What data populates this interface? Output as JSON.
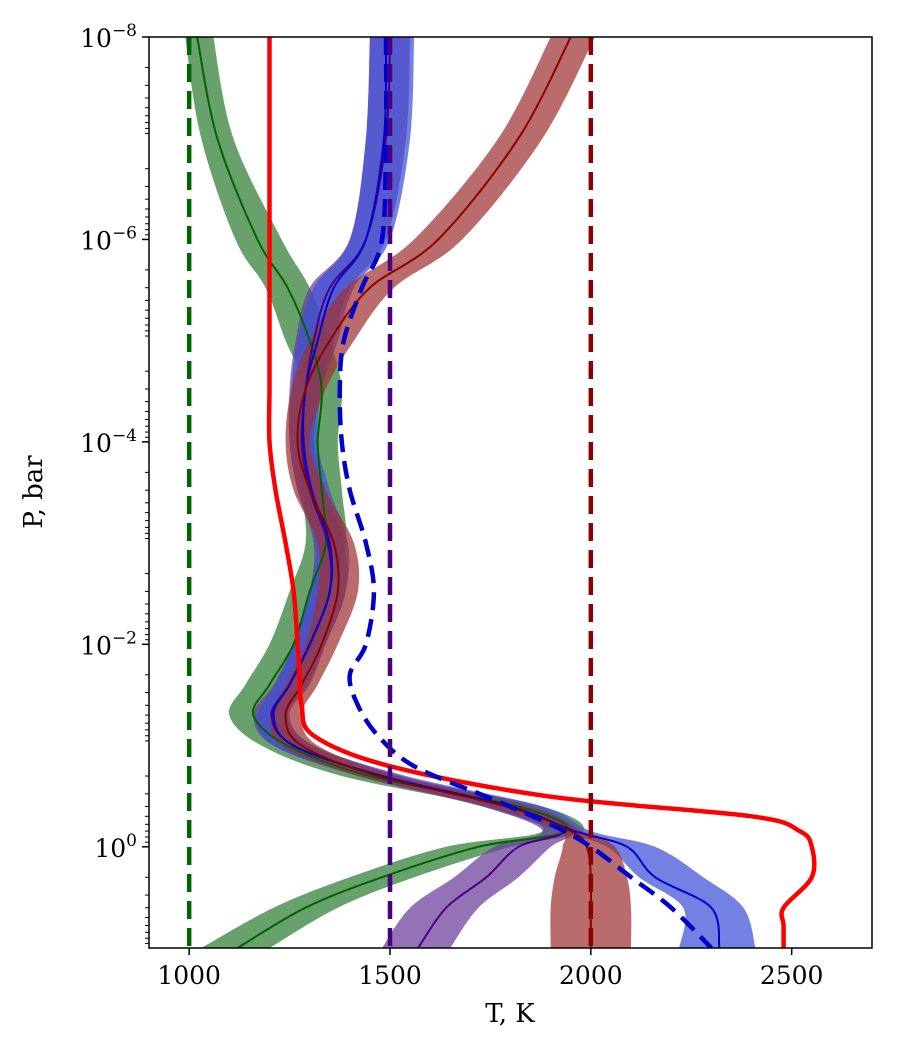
{
  "chart_data": {
    "type": "line",
    "xlabel": "T, K",
    "ylabel": "P, bar",
    "xlim": [
      900,
      2700
    ],
    "ylim": [
      10,
      1e-08
    ],
    "yscale": "log",
    "grid": false,
    "legend": "none",
    "x_ticks": [
      {
        "value": 1000,
        "label": "1000"
      },
      {
        "value": 1500,
        "label": "1500"
      },
      {
        "value": 2000,
        "label": "2000"
      },
      {
        "value": 2500,
        "label": "2500"
      }
    ],
    "y_ticks": [
      {
        "value": 1e-08,
        "base": "10",
        "exp": "−8"
      },
      {
        "value": 1e-06,
        "base": "10",
        "exp": "−6"
      },
      {
        "value": 0.0001,
        "base": "10",
        "exp": "−4"
      },
      {
        "value": 0.01,
        "base": "10",
        "exp": "−2"
      },
      {
        "value": 1,
        "base": "10",
        "exp": "0"
      }
    ],
    "pressure_levels": [
      1e-08,
      1e-07,
      1e-06,
      3e-06,
      1e-05,
      3e-05,
      0.0001,
      0.0003,
      0.001,
      0.003,
      0.01,
      0.025,
      0.05,
      0.1,
      0.2,
      0.4,
      0.7,
      1,
      2,
      4,
      10
    ],
    "series": [
      {
        "color": "#006400",
        "band_color": "#2e7d32",
        "median": [
          1020,
          1070,
          1170,
          1245,
          1300,
          1330,
          1320,
          1330,
          1340,
          1300,
          1260,
          1200,
          1160,
          1245,
          1450,
          1820,
          1940,
          1720,
          1480,
          1290,
          1120
        ],
        "lower": [
          990,
          1030,
          1115,
          1190,
          1240,
          1290,
          1270,
          1280,
          1290,
          1250,
          1200,
          1140,
          1100,
          1180,
          1380,
          1740,
          1880,
          1640,
          1400,
          1210,
          1030
        ],
        "upper": [
          1060,
          1110,
          1230,
          1300,
          1350,
          1380,
          1370,
          1380,
          1390,
          1350,
          1310,
          1250,
          1210,
          1300,
          1510,
          1880,
          1980,
          1800,
          1560,
          1370,
          1200
        ]
      },
      {
        "color": "#4b0082",
        "band_color": "#6a3d9a",
        "median": [
          1500,
          1490,
          1440,
          1350,
          1310,
          1290,
          1280,
          1300,
          1345,
          1350,
          1300,
          1250,
          1205,
          1260,
          1480,
          1800,
          1930,
          1820,
          1740,
          1640,
          1570
        ],
        "lower": [
          1450,
          1440,
          1400,
          1300,
          1265,
          1250,
          1250,
          1270,
          1310,
          1300,
          1260,
          1210,
          1160,
          1210,
          1420,
          1730,
          1880,
          1760,
          1660,
          1550,
          1480
        ],
        "upper": [
          1550,
          1540,
          1490,
          1400,
          1360,
          1330,
          1310,
          1340,
          1385,
          1390,
          1340,
          1295,
          1245,
          1310,
          1530,
          1860,
          1960,
          1900,
          1820,
          1720,
          1650
        ]
      },
      {
        "color": "#0000cd",
        "band_color": "#3f51d8",
        "median": [
          1490,
          1485,
          1440,
          1360,
          1320,
          1290,
          1285,
          1305,
          1350,
          1350,
          1300,
          1250,
          1210,
          1260,
          1480,
          1800,
          1960,
          2090,
          2160,
          2300,
          2320
        ],
        "lower": [
          1450,
          1440,
          1400,
          1310,
          1270,
          1255,
          1250,
          1270,
          1315,
          1300,
          1260,
          1215,
          1170,
          1210,
          1420,
          1730,
          1920,
          2040,
          2120,
          2230,
          2220
        ],
        "upper": [
          1560,
          1550,
          1500,
          1410,
          1370,
          1330,
          1320,
          1350,
          1395,
          1390,
          1340,
          1300,
          1250,
          1310,
          1540,
          1880,
          2000,
          2160,
          2280,
          2380,
          2410
        ]
      },
      {
        "color": "#8b0000",
        "band_color": "#a03232",
        "median": [
          1950,
          1820,
          1620,
          1450,
          1350,
          1290,
          1270,
          1300,
          1360,
          1370,
          1330,
          1280,
          1240,
          1280,
          1470,
          1790,
          1950,
          1990,
          2000,
          2000,
          2000
        ],
        "lower": [
          1900,
          1770,
          1560,
          1390,
          1300,
          1255,
          1240,
          1260,
          1320,
          1320,
          1290,
          1240,
          1205,
          1230,
          1420,
          1740,
          1920,
          1930,
          1910,
          1900,
          1900
        ],
        "upper": [
          2010,
          1880,
          1680,
          1510,
          1410,
          1340,
          1300,
          1340,
          1410,
          1420,
          1370,
          1320,
          1280,
          1320,
          1520,
          1850,
          1980,
          2060,
          2090,
          2100,
          2100
        ]
      }
    ],
    "reference_profiles": [
      {
        "color": "#ff0000",
        "style": "solid",
        "T": [
          1200,
          1200,
          1200,
          1200,
          1200,
          1200,
          1200,
          1215,
          1240,
          1260,
          1270,
          1275,
          1280,
          1310,
          1500,
          1900,
          2400,
          2520,
          2550,
          2550,
          2480,
          2480,
          2480
        ],
        "P": [
          1e-08,
          1e-07,
          1e-06,
          3e-06,
          1e-05,
          3e-05,
          0.0001,
          0.0003,
          0.001,
          0.003,
          0.01,
          0.02,
          0.04,
          0.08,
          0.16,
          0.32,
          0.5,
          0.7,
          1,
          2,
          4,
          6,
          10
        ]
      },
      {
        "color": "#0000cd",
        "style": "dashed",
        "T": [
          1490,
          1490,
          1480,
          1430,
          1385,
          1375,
          1380,
          1400,
          1440,
          1460,
          1440,
          1400,
          1420,
          1470,
          1560,
          1740,
          1900,
          2000,
          2100,
          2200,
          2300
        ],
        "P": [
          1e-08,
          1e-07,
          1e-06,
          3e-06,
          1e-05,
          3e-05,
          0.0001,
          0.0003,
          0.001,
          0.003,
          0.01,
          0.02,
          0.04,
          0.08,
          0.16,
          0.32,
          0.6,
          1,
          2,
          4,
          10
        ]
      },
      {
        "color": "#006400",
        "style": "dashed",
        "T": [
          1000,
          1000
        ],
        "P": [
          1e-08,
          10
        ]
      },
      {
        "color": "#4b0082",
        "style": "dashed",
        "T": [
          1500,
          1500
        ],
        "P": [
          1e-08,
          10
        ]
      },
      {
        "color": "#8b0000",
        "style": "dashed",
        "T": [
          2000,
          2000
        ],
        "P": [
          1e-08,
          10
        ]
      }
    ]
  }
}
